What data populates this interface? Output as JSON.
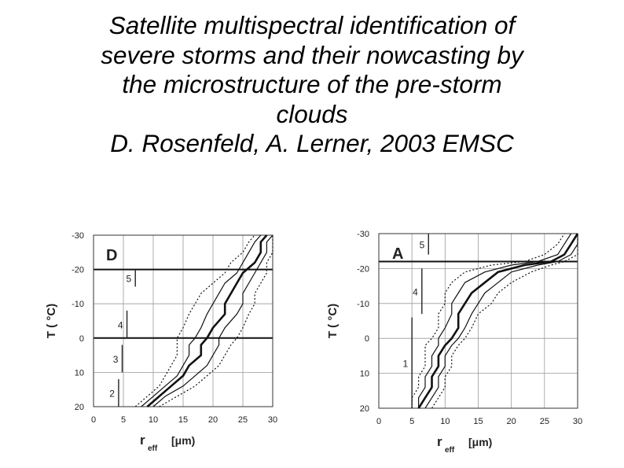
{
  "slide": {
    "title_lines": [
      "Satellite multispectral identification of",
      "severe storms and their nowcasting by",
      "the microstructure of the pre-storm",
      "clouds",
      "D. Rosenfeld, A. Lerner, 2003 EMSC"
    ]
  },
  "chart_data": [
    {
      "type": "line",
      "panel_label": "D",
      "xlabel": "r",
      "xlabel_subscript": "eff",
      "xlabel_units": "[μm)",
      "ylabel": "T ( °C)",
      "xlim": [
        0,
        30
      ],
      "ylim": [
        20,
        -30
      ],
      "x_ticks": [
        0,
        5,
        10,
        15,
        20,
        25,
        30
      ],
      "y_ticks": [
        -30,
        -20,
        -10,
        0,
        10,
        20
      ],
      "grid": true,
      "stage_lines": [
        {
          "label": "2",
          "x": 4.2,
          "top": 12,
          "bottom": 20
        },
        {
          "label": "3",
          "x": 4.8,
          "top": 2,
          "bottom": 10
        },
        {
          "label": "4",
          "x": 5.6,
          "top": -8,
          "bottom": 0
        },
        {
          "label": "5",
          "x": 7.0,
          "top": -20,
          "bottom": -15
        }
      ],
      "highlight_levels": [
        -20,
        0
      ],
      "series": [
        {
          "style": "dotted",
          "points": [
            [
              7,
              20
            ],
            [
              9,
              17
            ],
            [
              11,
              14
            ],
            [
              12,
              11
            ],
            [
              13,
              8
            ],
            [
              14,
              5
            ],
            [
              14,
              2
            ],
            [
              14,
              0
            ],
            [
              15,
              -3
            ],
            [
              16,
              -7
            ],
            [
              17,
              -10
            ],
            [
              18,
              -13
            ],
            [
              20,
              -16
            ],
            [
              22,
              -19
            ],
            [
              23,
              -22
            ],
            [
              25,
              -25
            ],
            [
              26,
              -28
            ],
            [
              27,
              -30
            ]
          ]
        },
        {
          "style": "thin",
          "points": [
            [
              8,
              20
            ],
            [
              10,
              17
            ],
            [
              12,
              14
            ],
            [
              14,
              11
            ],
            [
              15,
              8
            ],
            [
              16,
              5
            ],
            [
              16,
              2
            ],
            [
              17,
              0
            ],
            [
              18,
              -3
            ],
            [
              19,
              -7
            ],
            [
              20,
              -10
            ],
            [
              21,
              -13
            ],
            [
              22,
              -16
            ],
            [
              24,
              -19
            ],
            [
              25,
              -22
            ],
            [
              26,
              -25
            ],
            [
              27,
              -28
            ],
            [
              28,
              -30
            ]
          ]
        },
        {
          "style": "thick",
          "points": [
            [
              9,
              20
            ],
            [
              11,
              17
            ],
            [
              13,
              14
            ],
            [
              15,
              11
            ],
            [
              16,
              8
            ],
            [
              18,
              5
            ],
            [
              18,
              2
            ],
            [
              19,
              0
            ],
            [
              20,
              -3
            ],
            [
              22,
              -7
            ],
            [
              22,
              -10
            ],
            [
              23,
              -13
            ],
            [
              24,
              -16
            ],
            [
              25,
              -19
            ],
            [
              27,
              -22
            ],
            [
              28,
              -25
            ],
            [
              28,
              -28
            ],
            [
              29,
              -30
            ]
          ]
        },
        {
          "style": "thin",
          "points": [
            [
              10,
              20
            ],
            [
              12,
              17
            ],
            [
              15,
              14
            ],
            [
              17,
              11
            ],
            [
              19,
              8
            ],
            [
              20,
              5
            ],
            [
              21,
              2
            ],
            [
              21,
              0
            ],
            [
              22,
              -3
            ],
            [
              24,
              -7
            ],
            [
              25,
              -10
            ],
            [
              25,
              -13
            ],
            [
              26,
              -16
            ],
            [
              27,
              -19
            ],
            [
              28,
              -22
            ],
            [
              29,
              -25
            ],
            [
              29,
              -28
            ],
            [
              30,
              -30
            ]
          ]
        },
        {
          "style": "dotted",
          "points": [
            [
              11,
              20
            ],
            [
              14,
              17
            ],
            [
              17,
              14
            ],
            [
              19,
              11
            ],
            [
              21,
              8
            ],
            [
              22,
              5
            ],
            [
              23,
              2
            ],
            [
              24,
              0
            ],
            [
              25,
              -3
            ],
            [
              26,
              -7
            ],
            [
              27,
              -10
            ],
            [
              27,
              -13
            ],
            [
              28,
              -16
            ],
            [
              29,
              -19
            ],
            [
              29,
              -22
            ],
            [
              30,
              -25
            ],
            [
              30,
              -28
            ],
            [
              30,
              -30
            ]
          ]
        }
      ]
    },
    {
      "type": "line",
      "panel_label": "A",
      "xlabel": "r",
      "xlabel_subscript": "eff",
      "xlabel_units": "[μm)",
      "ylabel": "T ( °C)",
      "xlim": [
        0,
        30
      ],
      "ylim": [
        20,
        -30
      ],
      "x_ticks": [
        0,
        5,
        10,
        15,
        20,
        25,
        30
      ],
      "y_ticks": [
        -30,
        -20,
        -10,
        0,
        10,
        20
      ],
      "grid": true,
      "stage_lines": [
        {
          "label": "1",
          "x": 5.0,
          "top": -6,
          "bottom": 20
        },
        {
          "label": "4",
          "x": 6.5,
          "top": -20,
          "bottom": -7
        },
        {
          "label": "5",
          "x": 7.5,
          "top": -30,
          "bottom": -24
        }
      ],
      "highlight_levels": [
        -22
      ],
      "series": [
        {
          "style": "dotted",
          "points": [
            [
              5,
              20
            ],
            [
              5,
              17
            ],
            [
              6,
              14
            ],
            [
              6,
              11
            ],
            [
              7,
              8
            ],
            [
              7,
              5
            ],
            [
              7,
              2
            ],
            [
              8,
              0
            ],
            [
              9,
              -3
            ],
            [
              9,
              -7
            ],
            [
              10,
              -10
            ],
            [
              10,
              -13
            ],
            [
              11,
              -16
            ],
            [
              13,
              -19
            ],
            [
              17,
              -21
            ],
            [
              22,
              -22
            ],
            [
              25,
              -24
            ],
            [
              27,
              -27
            ],
            [
              28,
              -30
            ]
          ]
        },
        {
          "style": "thin",
          "points": [
            [
              6,
              20
            ],
            [
              6,
              17
            ],
            [
              7,
              14
            ],
            [
              7,
              11
            ],
            [
              8,
              8
            ],
            [
              8,
              5
            ],
            [
              9,
              2
            ],
            [
              9,
              0
            ],
            [
              10,
              -3
            ],
            [
              11,
              -7
            ],
            [
              11,
              -10
            ],
            [
              12,
              -13
            ],
            [
              13,
              -16
            ],
            [
              16,
              -19
            ],
            [
              20,
              -21
            ],
            [
              24,
              -22
            ],
            [
              27,
              -24
            ],
            [
              28,
              -27
            ],
            [
              29,
              -30
            ]
          ]
        },
        {
          "style": "thick",
          "points": [
            [
              6,
              20
            ],
            [
              7,
              17
            ],
            [
              8,
              14
            ],
            [
              8,
              11
            ],
            [
              9,
              8
            ],
            [
              9,
              5
            ],
            [
              10,
              2
            ],
            [
              11,
              0
            ],
            [
              12,
              -3
            ],
            [
              12,
              -7
            ],
            [
              13,
              -10
            ],
            [
              14,
              -13
            ],
            [
              16,
              -16
            ],
            [
              18,
              -19
            ],
            [
              22,
              -21
            ],
            [
              26,
              -22
            ],
            [
              28,
              -24
            ],
            [
              29,
              -27
            ],
            [
              30,
              -30
            ]
          ]
        },
        {
          "style": "thin",
          "points": [
            [
              7,
              20
            ],
            [
              8,
              17
            ],
            [
              9,
              14
            ],
            [
              9,
              11
            ],
            [
              10,
              8
            ],
            [
              10,
              5
            ],
            [
              11,
              2
            ],
            [
              12,
              0
            ],
            [
              13,
              -3
            ],
            [
              14,
              -7
            ],
            [
              15,
              -10
            ],
            [
              16,
              -13
            ],
            [
              18,
              -16
            ],
            [
              20,
              -19
            ],
            [
              24,
              -21
            ],
            [
              27,
              -22
            ],
            [
              29,
              -24
            ],
            [
              30,
              -27
            ],
            [
              30,
              -30
            ]
          ]
        },
        {
          "style": "dotted",
          "points": [
            [
              8,
              20
            ],
            [
              9,
              17
            ],
            [
              10,
              14
            ],
            [
              10,
              11
            ],
            [
              11,
              8
            ],
            [
              11,
              5
            ],
            [
              12,
              2
            ],
            [
              13,
              0
            ],
            [
              14,
              -3
            ],
            [
              15,
              -7
            ],
            [
              17,
              -10
            ],
            [
              18,
              -13
            ],
            [
              20,
              -16
            ],
            [
              23,
              -19
            ],
            [
              26,
              -21
            ],
            [
              28,
              -22
            ],
            [
              30,
              -24
            ],
            [
              30,
              -27
            ],
            [
              30,
              -30
            ]
          ]
        }
      ]
    }
  ]
}
